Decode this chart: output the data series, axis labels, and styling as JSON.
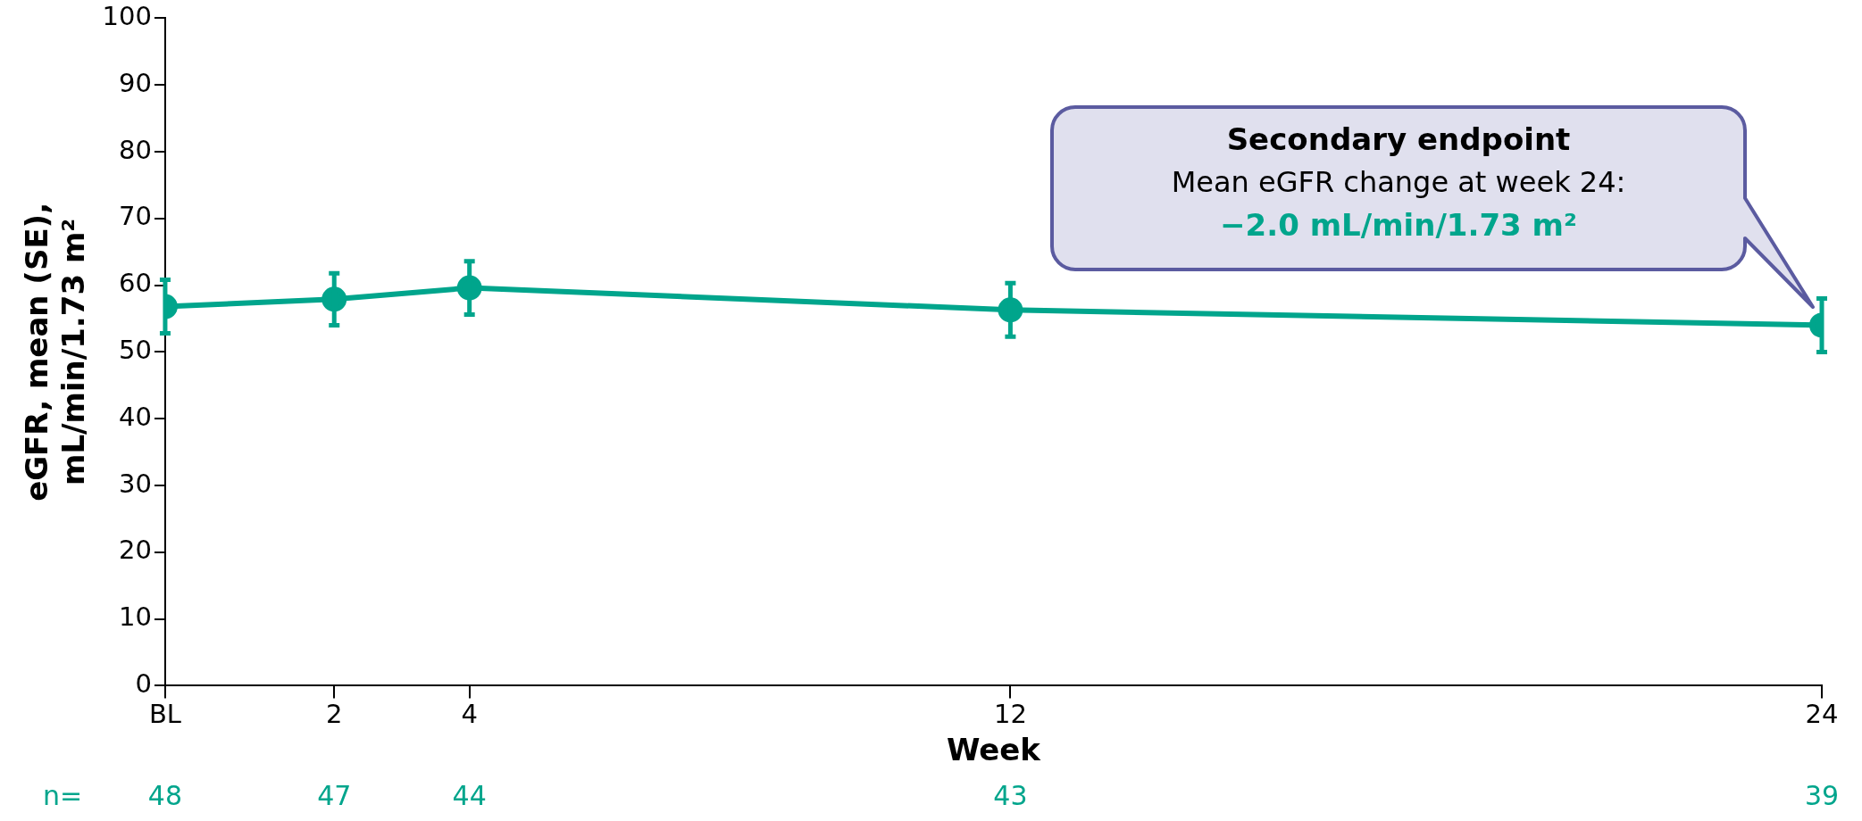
{
  "chart_data": {
    "type": "line",
    "x": [
      -0.5,
      2,
      4,
      12,
      24
    ],
    "series": [
      {
        "color": "#00a58c",
        "values": [
          56.8,
          57.9,
          59.6,
          56.3,
          54.0
        ],
        "errors": [
          4,
          3.9,
          4,
          4,
          4
        ]
      }
    ],
    "xlim": [
      -0.5,
      24
    ],
    "xticks": [
      {
        "value": -0.5,
        "label": "BL"
      },
      2,
      4,
      12,
      24
    ],
    "ylim": [
      0,
      100
    ],
    "yticks": [
      0,
      10,
      20,
      30,
      40,
      50,
      60,
      70,
      80,
      90,
      100
    ],
    "xlabel": "Week",
    "ylabel": "eGFR, mean (SE),\nmL/min/1.73 m²",
    "marker": "circle",
    "line_style": "solid",
    "legend": false,
    "grid": false,
    "annotations": [
      "Secondary endpoint\nMean eGFR change at week 24:\n−2.0 mL/min/1.73 m²",
      "n=",
      "48",
      "47",
      "44",
      "43",
      "39"
    ]
  }
}
